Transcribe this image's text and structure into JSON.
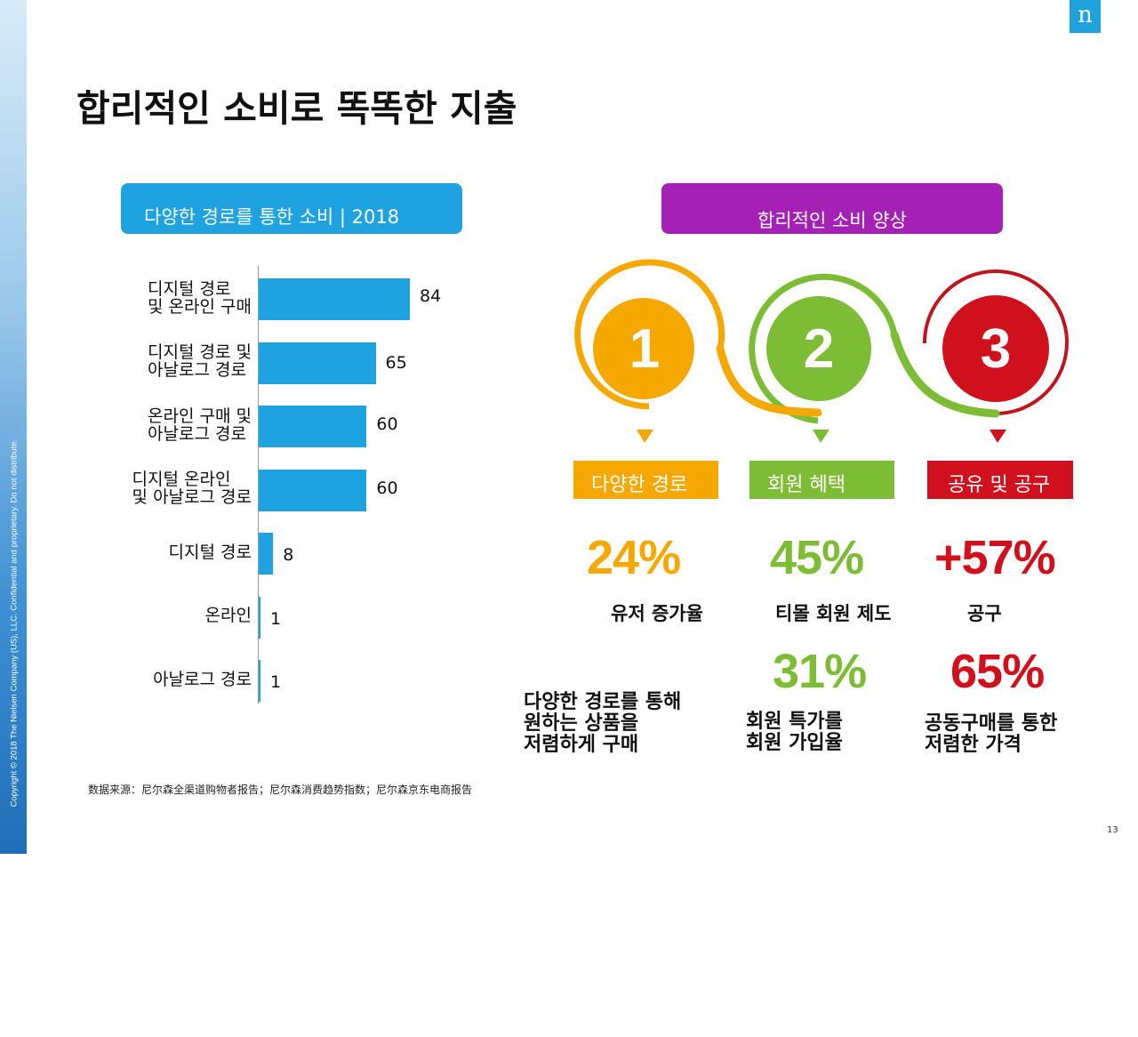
{
  "copyright": "Copyright © 2018 The Nielsen Company (US), LLC. Confidential and proprietary. Do not distribute.",
  "logo": "n",
  "title": "합리적인 소비로 똑똑한 지출",
  "left_header": "다양한 경로를 통한 소비 | 2018",
  "right_header": "합리적인 소비 양상",
  "colors": {
    "bar": "#1ea3e0",
    "orange": "#f5a800",
    "green": "#7dbd35",
    "red": "#d0101c",
    "purple": "#a521b5"
  },
  "chart_data": {
    "type": "bar",
    "orientation": "horizontal",
    "title": "다양한 경로를 통한 소비 | 2018",
    "categories": [
      [
        "디지털 경로",
        "및 온라인 구매"
      ],
      [
        "디지털 경로 및",
        "아날로그 경로"
      ],
      [
        "온라인 구매 및",
        "아날로그 경로"
      ],
      [
        "디지털 온라인",
        "및 아날로그 경로"
      ],
      [
        "디지털 경로"
      ],
      [
        "온라인"
      ],
      [
        "아날로그 경로"
      ]
    ],
    "values": [
      84,
      65,
      60,
      60,
      8,
      1,
      1
    ],
    "xlabel": "",
    "ylabel": ""
  },
  "steps": [
    {
      "number": "1",
      "label": "다양한 경로"
    },
    {
      "number": "2",
      "label": "회원 혜택"
    },
    {
      "number": "3",
      "label": "공유 및 공구"
    }
  ],
  "stats": {
    "s1": {
      "value": "24%",
      "label": "유저 증가율"
    },
    "s2": {
      "value": "45%",
      "label": "티몰 회원 제도"
    },
    "s3": {
      "value": "+57%",
      "label": "공구"
    },
    "s4": {
      "value": "31%"
    },
    "s5": {
      "value": "65%"
    }
  },
  "descriptions": {
    "d1": [
      "다양한 경로를 통해",
      "원하는 상품을",
      "저렴하게 구매"
    ],
    "d2": [
      "회원 특가를",
      "회원 가입율"
    ],
    "d3": [
      "공동구매를 통한",
      "저렴한 가격"
    ]
  },
  "source": "数据来源：尼尔森全渠道购物者报告；尼尔森消费趋势指数；尼尔森京东电商报告",
  "page_number": "13"
}
